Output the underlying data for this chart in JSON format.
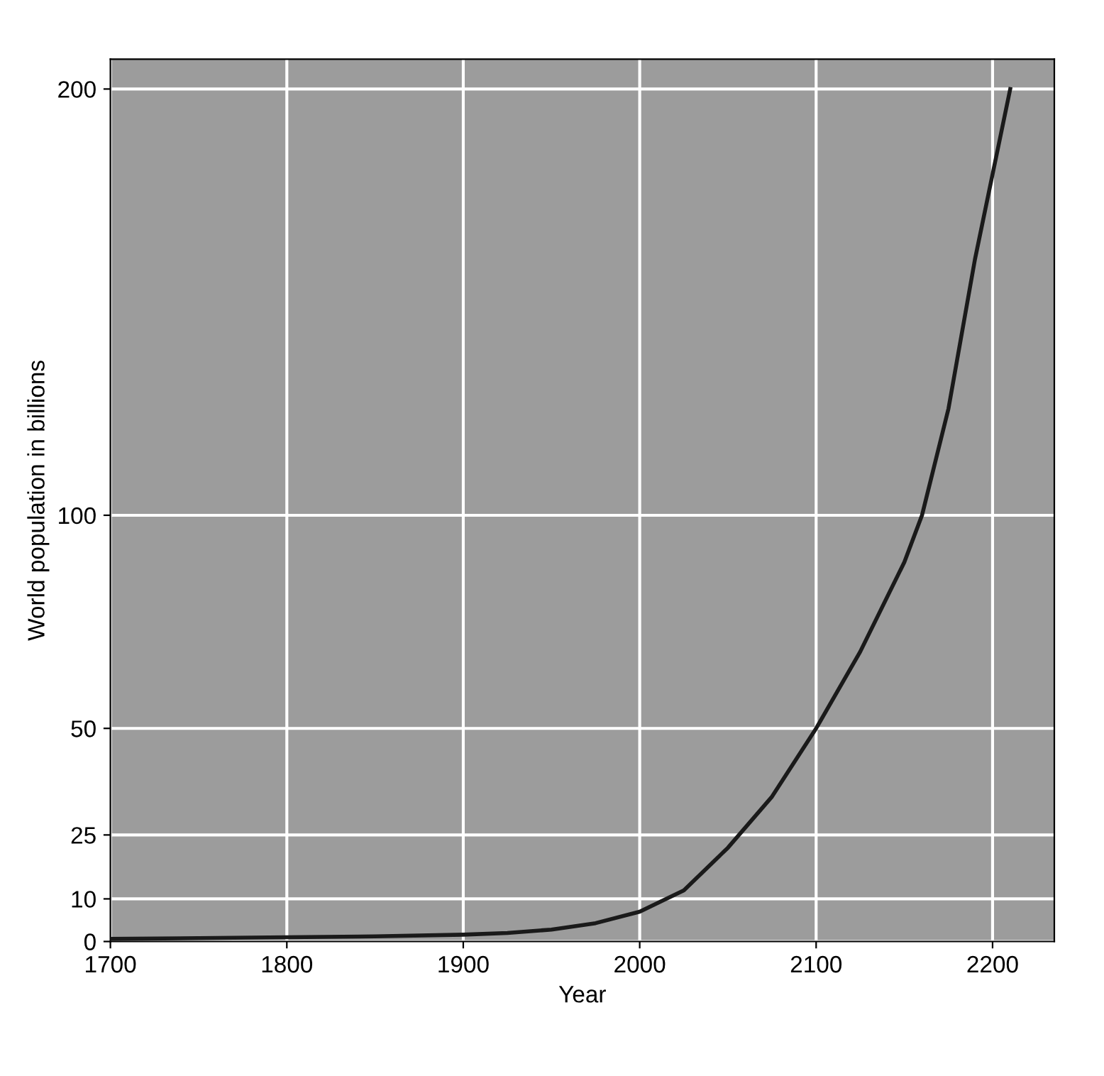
{
  "chart_data": {
    "type": "line",
    "xlabel": "Year",
    "ylabel": "World population in billions",
    "x": [
      1700,
      1750,
      1800,
      1850,
      1900,
      1925,
      1950,
      1975,
      2000,
      2025,
      2050,
      2075,
      2100,
      2125,
      2150,
      2160,
      2175,
      2190,
      2200,
      2210
    ],
    "series": [
      {
        "color": "#1a1a1a",
        "values": [
          0.6,
          0.8,
          1,
          1.2,
          1.6,
          2,
          2.8,
          4.3,
          7,
          12,
          22,
          34,
          50,
          68,
          89,
          100,
          125,
          160,
          180,
          200
        ]
      }
    ],
    "xlim": [
      1700,
      2235
    ],
    "ylim": [
      0,
      207
    ],
    "xticks": [
      1700,
      1800,
      1900,
      2000,
      2100,
      2200
    ],
    "yticks": [
      0,
      10,
      25,
      50,
      100,
      200
    ],
    "grid": true,
    "marker": "none",
    "line_style": "solid"
  }
}
